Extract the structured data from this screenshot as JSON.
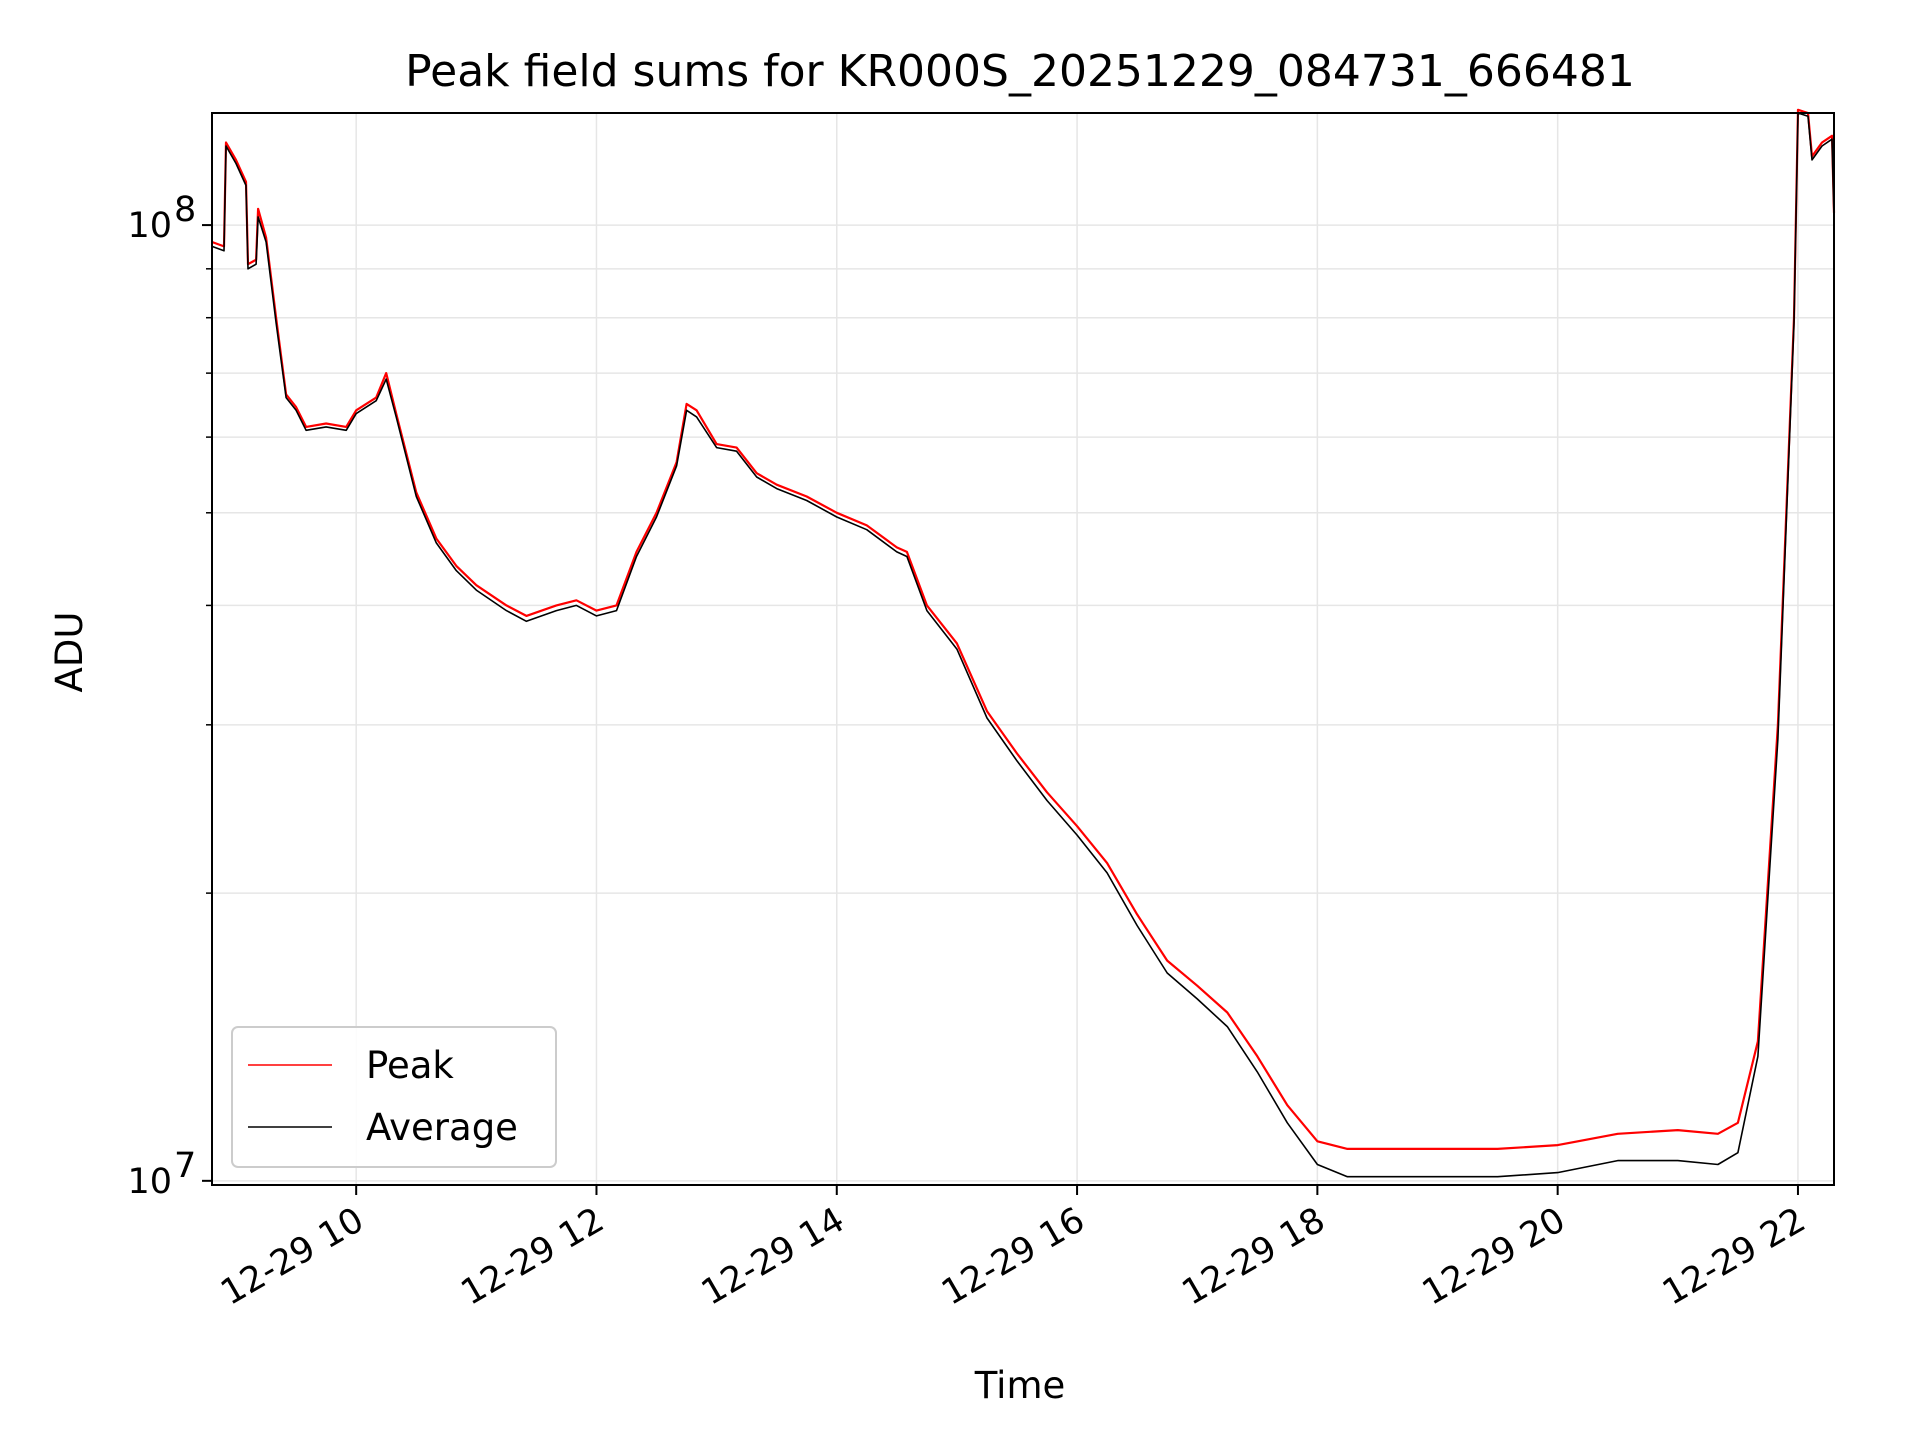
{
  "chart_data": {
    "type": "line",
    "title": "Peak field sums for KR000S_20251229_084731_666481",
    "xlabel": "Time",
    "ylabel": "ADU",
    "x_axis": {
      "kind": "datetime",
      "range": [
        "2025-12-29 08:48",
        "2025-12-29 22:18"
      ],
      "tick_labels": [
        "12-29 10",
        "12-29 12",
        "12-29 14",
        "12-29 16",
        "12-29 18",
        "12-29 20",
        "12-29 22"
      ],
      "tick_label_rotation": "30 degrees"
    },
    "y_axis": {
      "scale": "log",
      "range": [
        9900000,
        131000000
      ],
      "tick_labels": [
        {
          "value": 10000000,
          "base": "10",
          "exp": "7"
        },
        {
          "value": 100000000,
          "base": "10",
          "exp": "8"
        }
      ]
    },
    "grid": true,
    "legend": {
      "placement": "lower-left",
      "entries": [
        "Peak",
        "Average"
      ]
    },
    "series": [
      {
        "name": "Peak",
        "color": "#ff0000",
        "x": [
          "2025-12-29 08:48",
          "2025-12-29 08:54",
          "2025-12-29 08:55",
          "2025-12-29 09:00",
          "2025-12-29 09:05",
          "2025-12-29 09:06",
          "2025-12-29 09:10",
          "2025-12-29 09:11",
          "2025-12-29 09:15",
          "2025-12-29 09:20",
          "2025-12-29 09:25",
          "2025-12-29 09:30",
          "2025-12-29 09:35",
          "2025-12-29 09:45",
          "2025-12-29 09:55",
          "2025-12-29 10:00",
          "2025-12-29 10:10",
          "2025-12-29 10:15",
          "2025-12-29 10:20",
          "2025-12-29 10:30",
          "2025-12-29 10:40",
          "2025-12-29 10:50",
          "2025-12-29 11:00",
          "2025-12-29 11:15",
          "2025-12-29 11:25",
          "2025-12-29 11:40",
          "2025-12-29 11:50",
          "2025-12-29 12:00",
          "2025-12-29 12:10",
          "2025-12-29 12:20",
          "2025-12-29 12:30",
          "2025-12-29 12:40",
          "2025-12-29 12:45",
          "2025-12-29 12:50",
          "2025-12-29 13:00",
          "2025-12-29 13:10",
          "2025-12-29 13:20",
          "2025-12-29 13:30",
          "2025-12-29 13:45",
          "2025-12-29 14:00",
          "2025-12-29 14:15",
          "2025-12-29 14:30",
          "2025-12-29 14:35",
          "2025-12-29 14:45",
          "2025-12-29 15:00",
          "2025-12-29 15:15",
          "2025-12-29 15:30",
          "2025-12-29 15:45",
          "2025-12-29 16:00",
          "2025-12-29 16:15",
          "2025-12-29 16:30",
          "2025-12-29 16:45",
          "2025-12-29 17:00",
          "2025-12-29 17:15",
          "2025-12-29 17:30",
          "2025-12-29 17:45",
          "2025-12-29 18:00",
          "2025-12-29 18:15",
          "2025-12-29 18:30",
          "2025-12-29 19:00",
          "2025-12-29 19:30",
          "2025-12-29 20:00",
          "2025-12-29 20:30",
          "2025-12-29 21:00",
          "2025-12-29 21:20",
          "2025-12-29 21:30",
          "2025-12-29 21:40",
          "2025-12-29 21:50",
          "2025-12-29 21:58",
          "2025-12-29 22:00",
          "2025-12-29 22:05",
          "2025-12-29 22:07",
          "2025-12-29 22:12",
          "2025-12-29 22:17",
          "2025-12-29 22:18"
        ],
        "values": [
          96000000,
          95000000,
          122000000,
          117000000,
          111000000,
          91000000,
          92000000,
          104000000,
          97000000,
          80000000,
          66500000,
          64500000,
          61500000,
          62000000,
          61500000,
          64000000,
          66000000,
          70000000,
          63500000,
          52500000,
          47000000,
          44000000,
          42000000,
          40000000,
          39000000,
          40000000,
          40500000,
          39500000,
          40000000,
          45500000,
          50000000,
          56500000,
          65000000,
          64000000,
          59000000,
          58500000,
          55000000,
          53500000,
          52000000,
          50000000,
          48500000,
          46000000,
          45500000,
          40000000,
          36500000,
          31000000,
          28000000,
          25500000,
          23500000,
          21500000,
          19000000,
          17000000,
          16000000,
          15000000,
          13500000,
          12000000,
          11000000,
          10800000,
          10800000,
          10800000,
          10800000,
          10900000,
          11200000,
          11300000,
          11200000,
          11500000,
          14000000,
          30000000,
          80000000,
          132000000,
          131000000,
          118000000,
          122000000,
          124000000,
          103000000
        ]
      },
      {
        "name": "Average",
        "color": "#000000",
        "x": [
          "2025-12-29 08:48",
          "2025-12-29 08:54",
          "2025-12-29 08:55",
          "2025-12-29 09:00",
          "2025-12-29 09:05",
          "2025-12-29 09:06",
          "2025-12-29 09:10",
          "2025-12-29 09:11",
          "2025-12-29 09:15",
          "2025-12-29 09:20",
          "2025-12-29 09:25",
          "2025-12-29 09:30",
          "2025-12-29 09:35",
          "2025-12-29 09:45",
          "2025-12-29 09:55",
          "2025-12-29 10:00",
          "2025-12-29 10:10",
          "2025-12-29 10:15",
          "2025-12-29 10:20",
          "2025-12-29 10:30",
          "2025-12-29 10:40",
          "2025-12-29 10:50",
          "2025-12-29 11:00",
          "2025-12-29 11:15",
          "2025-12-29 11:25",
          "2025-12-29 11:40",
          "2025-12-29 11:50",
          "2025-12-29 12:00",
          "2025-12-29 12:10",
          "2025-12-29 12:20",
          "2025-12-29 12:30",
          "2025-12-29 12:40",
          "2025-12-29 12:45",
          "2025-12-29 12:50",
          "2025-12-29 13:00",
          "2025-12-29 13:10",
          "2025-12-29 13:20",
          "2025-12-29 13:30",
          "2025-12-29 13:45",
          "2025-12-29 14:00",
          "2025-12-29 14:15",
          "2025-12-29 14:30",
          "2025-12-29 14:35",
          "2025-12-29 14:45",
          "2025-12-29 15:00",
          "2025-12-29 15:15",
          "2025-12-29 15:30",
          "2025-12-29 15:45",
          "2025-12-29 16:00",
          "2025-12-29 16:15",
          "2025-12-29 16:30",
          "2025-12-29 16:45",
          "2025-12-29 17:00",
          "2025-12-29 17:15",
          "2025-12-29 17:30",
          "2025-12-29 17:45",
          "2025-12-29 18:00",
          "2025-12-29 18:15",
          "2025-12-29 18:30",
          "2025-12-29 19:00",
          "2025-12-29 19:30",
          "2025-12-29 20:00",
          "2025-12-29 20:30",
          "2025-12-29 21:00",
          "2025-12-29 21:20",
          "2025-12-29 21:30",
          "2025-12-29 21:40",
          "2025-12-29 21:50",
          "2025-12-29 21:58",
          "2025-12-29 22:00",
          "2025-12-29 22:05",
          "2025-12-29 22:07",
          "2025-12-29 22:12",
          "2025-12-29 22:17",
          "2025-12-29 22:18"
        ],
        "values": [
          95000000,
          94000000,
          121000000,
          116000000,
          110000000,
          90000000,
          91000000,
          102000000,
          96000000,
          79000000,
          66000000,
          64000000,
          61000000,
          61500000,
          61000000,
          63500000,
          65500000,
          69000000,
          63000000,
          52000000,
          46500000,
          43500000,
          41500000,
          39500000,
          38500000,
          39500000,
          40000000,
          39000000,
          39500000,
          45000000,
          49500000,
          56000000,
          64000000,
          63000000,
          58500000,
          58000000,
          54500000,
          53000000,
          51500000,
          49500000,
          48000000,
          45500000,
          45000000,
          39500000,
          36000000,
          30500000,
          27500000,
          25000000,
          23000000,
          21000000,
          18500000,
          16500000,
          15500000,
          14500000,
          13000000,
          11500000,
          10400000,
          10100000,
          10100000,
          10100000,
          10100000,
          10200000,
          10500000,
          10500000,
          10400000,
          10700000,
          13500000,
          29000000,
          79000000,
          131000000,
          130000000,
          117000000,
          121000000,
          123000000,
          102000000
        ]
      }
    ]
  }
}
